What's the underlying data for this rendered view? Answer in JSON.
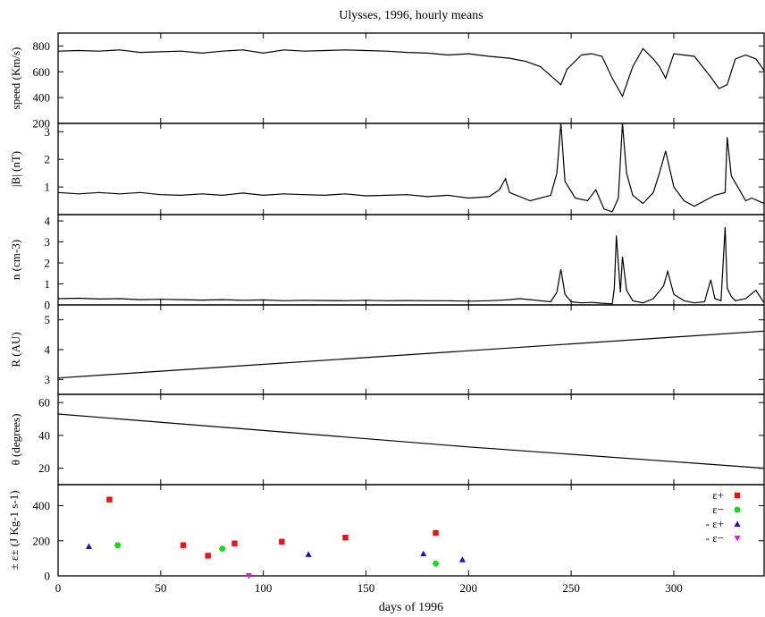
{
  "chart_data": {
    "type": "line",
    "title": "Ulysses, 1996, hourly means",
    "xlabel": "days of 1996",
    "xlim": [
      0,
      344
    ],
    "xticks": [
      "0",
      "50",
      "100",
      "150",
      "200",
      "250",
      "300"
    ],
    "grid": false,
    "panels": [
      {
        "ylabel": "speed (Km/s)",
        "ylim": [
          200,
          900
        ],
        "yticks": [
          "200",
          "400",
          "600",
          "800"
        ],
        "series": [
          {
            "type": "line",
            "x": [
              0,
              10,
              20,
              30,
              40,
              50,
              60,
              70,
              80,
              90,
              100,
              110,
              120,
              130,
              140,
              150,
              160,
              170,
              180,
              190,
              200,
              210,
              220,
              228,
              235,
              240,
              245,
              248,
              255,
              260,
              265,
              270,
              275,
              280,
              285,
              290,
              293,
              296,
              300,
              310,
              318,
              322,
              326,
              330,
              335,
              340,
              344
            ],
            "y": [
              760,
              765,
              760,
              770,
              750,
              755,
              760,
              745,
              760,
              770,
              745,
              770,
              760,
              765,
              770,
              765,
              760,
              750,
              745,
              730,
              740,
              720,
              705,
              680,
              640,
              570,
              500,
              620,
              730,
              740,
              720,
              550,
              410,
              640,
              780,
              700,
              640,
              550,
              740,
              720,
              560,
              470,
              500,
              700,
              730,
              700,
              610
            ]
          }
        ]
      },
      {
        "ylabel": "|B| (nT)",
        "ylim": [
          0,
          3.3
        ],
        "yticks": [
          "1",
          "2",
          "3"
        ],
        "series": [
          {
            "type": "line",
            "x": [
              0,
              10,
              20,
              30,
              40,
              50,
              60,
              70,
              80,
              90,
              100,
              110,
              120,
              130,
              140,
              150,
              160,
              170,
              180,
              190,
              200,
              210,
              215,
              218,
              220,
              230,
              240,
              243,
              245,
              247,
              252,
              258,
              262,
              266,
              270,
              273,
              275,
              277,
              280,
              285,
              290,
              293,
              296,
              300,
              305,
              310,
              315,
              320,
              325,
              326,
              328,
              332,
              335,
              338,
              344
            ],
            "y": [
              0.8,
              0.75,
              0.8,
              0.75,
              0.8,
              0.72,
              0.7,
              0.75,
              0.7,
              0.78,
              0.7,
              0.75,
              0.72,
              0.7,
              0.75,
              0.68,
              0.7,
              0.72,
              0.65,
              0.7,
              0.6,
              0.65,
              0.9,
              1.3,
              0.8,
              0.5,
              0.7,
              1.5,
              3.3,
              1.2,
              0.6,
              0.5,
              0.9,
              0.2,
              0.1,
              0.6,
              3.3,
              1.5,
              0.7,
              0.4,
              0.8,
              1.5,
              2.3,
              1.0,
              0.5,
              0.3,
              0.5,
              0.7,
              0.8,
              2.8,
              1.4,
              0.9,
              0.5,
              0.6,
              0.4
            ]
          }
        ]
      },
      {
        "ylabel": "n (cm-3)",
        "ylim": [
          0,
          4.3
        ],
        "yticks": [
          "0",
          "1",
          "2",
          "3",
          "4"
        ],
        "series": [
          {
            "type": "line",
            "x": [
              0,
              10,
              20,
              30,
              40,
              50,
              60,
              70,
              80,
              90,
              100,
              110,
              120,
              130,
              140,
              150,
              160,
              170,
              180,
              190,
              200,
              210,
              215,
              220,
              225,
              230,
              235,
              240,
              243,
              245,
              247,
              250,
              255,
              260,
              265,
              270,
              271,
              272,
              274,
              275,
              277,
              280,
              285,
              290,
              295,
              297,
              300,
              305,
              310,
              315,
              318,
              320,
              323,
              325,
              326,
              328,
              330,
              335,
              340,
              344
            ],
            "y": [
              0.3,
              0.32,
              0.28,
              0.3,
              0.25,
              0.27,
              0.25,
              0.23,
              0.25,
              0.22,
              0.24,
              0.2,
              0.22,
              0.21,
              0.2,
              0.22,
              0.2,
              0.21,
              0.2,
              0.2,
              0.18,
              0.2,
              0.22,
              0.25,
              0.3,
              0.25,
              0.2,
              0.15,
              0.6,
              1.7,
              0.5,
              0.15,
              0.1,
              0.12,
              0.08,
              0.05,
              0.8,
              3.3,
              0.6,
              2.3,
              0.7,
              0.2,
              0.1,
              0.3,
              0.9,
              1.6,
              0.5,
              0.2,
              0.1,
              0.15,
              1.2,
              0.3,
              0.2,
              3.7,
              0.8,
              0.4,
              0.2,
              0.3,
              0.7,
              0.1
            ]
          }
        ]
      },
      {
        "ylabel": "R (AU)",
        "ylim": [
          2.5,
          5.5
        ],
        "yticks": [
          "3",
          "4",
          "5"
        ],
        "series": [
          {
            "type": "line",
            "x": [
              0,
              344
            ],
            "y": [
              3.05,
              4.62
            ]
          }
        ]
      },
      {
        "ylabel": "θ (degrees)",
        "ylim": [
          10,
          65
        ],
        "yticks": [
          "20",
          "40",
          "60"
        ],
        "series": [
          {
            "type": "line",
            "x": [
              0,
              100,
              200,
              300,
              344
            ],
            "y": [
              53,
              43,
              33,
              24,
              20
            ]
          }
        ]
      },
      {
        "ylabel": "± ε± (J Kg-1 s-1)",
        "ylim": [
          0,
          520
        ],
        "yticks": [
          "0",
          "200",
          "400"
        ],
        "legend_position": "top-right",
        "series": [
          {
            "name": "ε+",
            "type": "scatter",
            "marker": "square",
            "color": "#ee1111",
            "x": [
              25,
              61,
              73,
              86,
              109,
              140,
              184
            ],
            "y": [
              435,
              175,
              115,
              185,
              195,
              218,
              245
            ]
          },
          {
            "name": "ε−",
            "type": "scatter",
            "marker": "circle",
            "color": "#11dd11",
            "x": [
              29,
              80,
              184
            ],
            "y": [
              175,
              155,
              70
            ]
          },
          {
            "name": "- ε+",
            "type": "scatter",
            "marker": "triangle-up",
            "color": "#1111dd",
            "x": [
              15,
              122,
              178,
              197
            ],
            "y": [
              168,
              123,
              127,
              93
            ]
          },
          {
            "name": "- ε−",
            "type": "scatter",
            "marker": "triangle-down",
            "color": "#ee11ee",
            "x": [
              93
            ],
            "y": [
              0
            ]
          }
        ]
      }
    ]
  }
}
